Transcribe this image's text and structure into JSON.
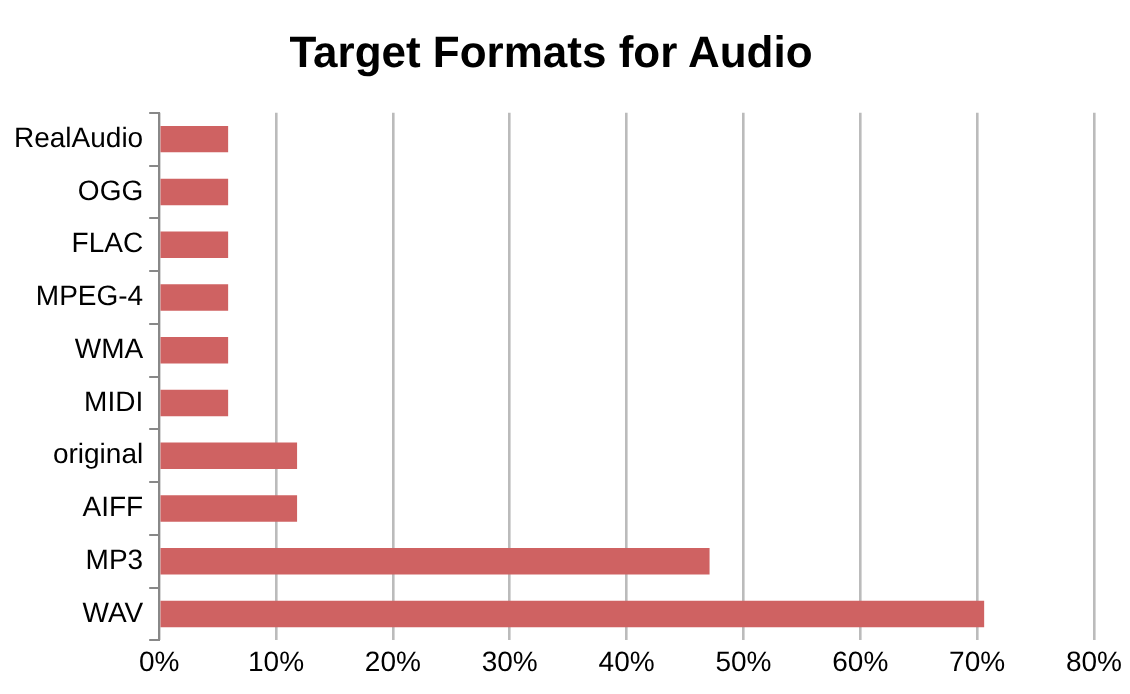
{
  "chart_data": {
    "type": "bar",
    "orientation": "horizontal",
    "title": "Target Formats for Audio",
    "categories": [
      "RealAudio",
      "OGG",
      "FLAC",
      "MPEG-4",
      "WMA",
      "MIDI",
      "original",
      "AIFF",
      "MP3",
      "WAV"
    ],
    "values": [
      5.9,
      5.9,
      5.9,
      5.9,
      5.9,
      5.9,
      11.8,
      11.8,
      47.1,
      70.6
    ],
    "color": "#cf6262",
    "xlim": [
      0,
      80
    ],
    "xticks": [
      {
        "value": 0,
        "label": "0%"
      },
      {
        "value": 10,
        "label": "10%"
      },
      {
        "value": 20,
        "label": "20%"
      },
      {
        "value": 30,
        "label": "30%"
      },
      {
        "value": 40,
        "label": "40%"
      },
      {
        "value": 50,
        "label": "50%"
      },
      {
        "value": 60,
        "label": "60%"
      },
      {
        "value": 70,
        "label": "70%"
      },
      {
        "value": 80,
        "label": "80%"
      }
    ],
    "grid": "x",
    "legend": false
  }
}
